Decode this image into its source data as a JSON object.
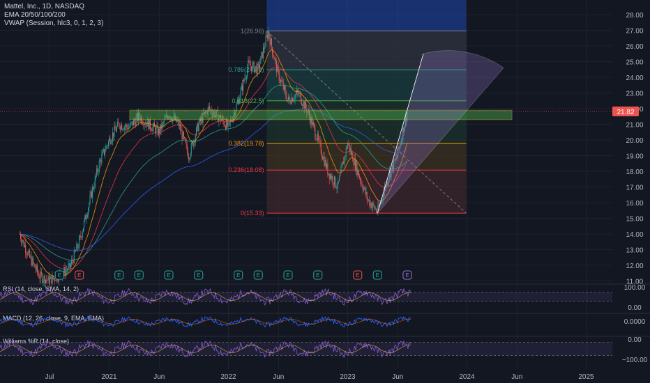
{
  "header": {
    "symbol_line": "Mattel, Inc., 1D, NASDAQ",
    "ema_line": "EMA 20/50/100/200",
    "vwap_line": "VWAP (Session, hlc3, 0, 1, 2, 3)"
  },
  "colors": {
    "background": "#131722",
    "up": "#26a69a",
    "down": "#ef5350",
    "fib_top": "#787b86",
    "fib_786": "#26a69a",
    "fib_618": "#4caf50",
    "fib_382": "#ff9800",
    "fib_236": "#f23645",
    "zone": "#4caf50",
    "fan": "#9575cd",
    "blue_box": "#2962ff",
    "rsi": "#7e57c2",
    "macd": "#2962ff",
    "signal": "#ff6d00",
    "willr": "#7e57c2"
  },
  "chart_data": [
    {
      "type": "candlestick",
      "title": "Mattel, Inc., 1D, NASDAQ",
      "current_price": "21.82",
      "y_ticks": [
        "28.00",
        "27.00",
        "26.00",
        "25.00",
        "24.00",
        "23.00",
        "22.00",
        "21.00",
        "20.00",
        "19.00",
        "18.00",
        "17.00",
        "16.00",
        "15.00",
        "14.00",
        "13.00",
        "12.00",
        "11.00"
      ],
      "ylim": [
        11,
        28.5
      ],
      "x_ticks": [
        "Jul",
        "2021",
        "Jun",
        "2022",
        "Jun",
        "2023",
        "Jun",
        "2024",
        "Jun",
        "2025"
      ],
      "series": [
        {
          "name": "Price",
          "points": [
            {
              "date": "2020-04",
              "value": 14.0
            },
            {
              "date": "2020-05",
              "value": 12.5
            },
            {
              "date": "2020-06",
              "value": 11.3
            },
            {
              "date": "2020-07",
              "value": 11.0
            },
            {
              "date": "2020-08",
              "value": 11.4
            },
            {
              "date": "2020-09",
              "value": 11.8
            },
            {
              "date": "2020-10",
              "value": 13.5
            },
            {
              "date": "2020-11",
              "value": 16.0
            },
            {
              "date": "2020-12",
              "value": 18.5
            },
            {
              "date": "2021-01",
              "value": 20.0
            },
            {
              "date": "2021-02",
              "value": 21.0
            },
            {
              "date": "2021-03",
              "value": 20.8
            },
            {
              "date": "2021-04",
              "value": 21.5
            },
            {
              "date": "2021-05",
              "value": 21.0
            },
            {
              "date": "2021-06",
              "value": 20.5
            },
            {
              "date": "2021-07",
              "value": 21.7
            },
            {
              "date": "2021-08",
              "value": 21.0
            },
            {
              "date": "2021-09",
              "value": 19.0
            },
            {
              "date": "2021-10",
              "value": 21.0
            },
            {
              "date": "2021-11",
              "value": 22.0
            },
            {
              "date": "2021-12",
              "value": 21.5
            },
            {
              "date": "2022-01",
              "value": 20.8
            },
            {
              "date": "2022-02",
              "value": 22.5
            },
            {
              "date": "2022-03",
              "value": 24.8
            },
            {
              "date": "2022-04",
              "value": 24.5
            },
            {
              "date": "2022-05",
              "value": 26.9
            },
            {
              "date": "2022-06",
              "value": 24.2
            },
            {
              "date": "2022-07",
              "value": 22.5
            },
            {
              "date": "2022-08",
              "value": 23.0
            },
            {
              "date": "2022-09",
              "value": 21.8
            },
            {
              "date": "2022-10",
              "value": 20.0
            },
            {
              "date": "2022-11",
              "value": 18.0
            },
            {
              "date": "2022-12",
              "value": 17.0
            },
            {
              "date": "2023-01",
              "value": 19.8
            },
            {
              "date": "2023-02",
              "value": 18.0
            },
            {
              "date": "2023-03",
              "value": 16.2
            },
            {
              "date": "2023-04",
              "value": 15.4
            },
            {
              "date": "2023-05",
              "value": 17.5
            },
            {
              "date": "2023-06",
              "value": 19.0
            },
            {
              "date": "2023-07",
              "value": 21.8
            }
          ]
        }
      ],
      "fibonacci": [
        {
          "label": "1(26.96)",
          "ratio": "1",
          "price": 26.96
        },
        {
          "label": "0.786(24.48)",
          "ratio": "0.786",
          "price": 24.48
        },
        {
          "label": "0.618(22.5)",
          "ratio": "0.618",
          "price": 22.5
        },
        {
          "label": "0.382(19.78)",
          "ratio": "0.382",
          "price": 19.78
        },
        {
          "label": "0.236(18.08)",
          "ratio": "0.236",
          "price": 18.08
        },
        {
          "label": "0(15.33)",
          "ratio": "0",
          "price": 15.33
        }
      ],
      "earnings_markers": [
        {
          "date": "2020-08",
          "label": "E",
          "kind": "neutral"
        },
        {
          "date": "2020-10",
          "label": "E",
          "kind": "negative"
        },
        {
          "date": "2021-02",
          "label": "E",
          "kind": "neutral"
        },
        {
          "date": "2021-04",
          "label": "E",
          "kind": "neutral"
        },
        {
          "date": "2021-07",
          "label": "E",
          "kind": "neutral"
        },
        {
          "date": "2021-10",
          "label": "E",
          "kind": "neutral"
        },
        {
          "date": "2022-02",
          "label": "E",
          "kind": "neutral"
        },
        {
          "date": "2022-04",
          "label": "E",
          "kind": "neutral"
        },
        {
          "date": "2022-07",
          "label": "E",
          "kind": "neutral"
        },
        {
          "date": "2022-10",
          "label": "E",
          "kind": "neutral"
        },
        {
          "date": "2023-02",
          "label": "E",
          "kind": "negative"
        },
        {
          "date": "2023-04",
          "label": "E",
          "kind": "neutral"
        },
        {
          "date": "2023-07",
          "label": "E",
          "kind": "upcoming"
        }
      ],
      "support_zone": {
        "low": 21.3,
        "high": 21.9
      },
      "grid": true
    },
    {
      "type": "line",
      "title": "RSI (14, close, SMA, 14, 2)",
      "y_ticks": [
        "100.00",
        "0.00"
      ],
      "ylim": [
        0,
        100
      ],
      "bands": [
        70,
        30
      ]
    },
    {
      "type": "line",
      "title": "MACD (12, 26, close, 9, EMA, EMA)",
      "y_ticks": [
        "0.0000"
      ]
    },
    {
      "type": "line",
      "title": "Williams %R (14, close)",
      "y_ticks": [
        "0.00",
        "−100.00"
      ],
      "ylim": [
        -100,
        0
      ],
      "bands": [
        -20,
        -80
      ]
    }
  ]
}
